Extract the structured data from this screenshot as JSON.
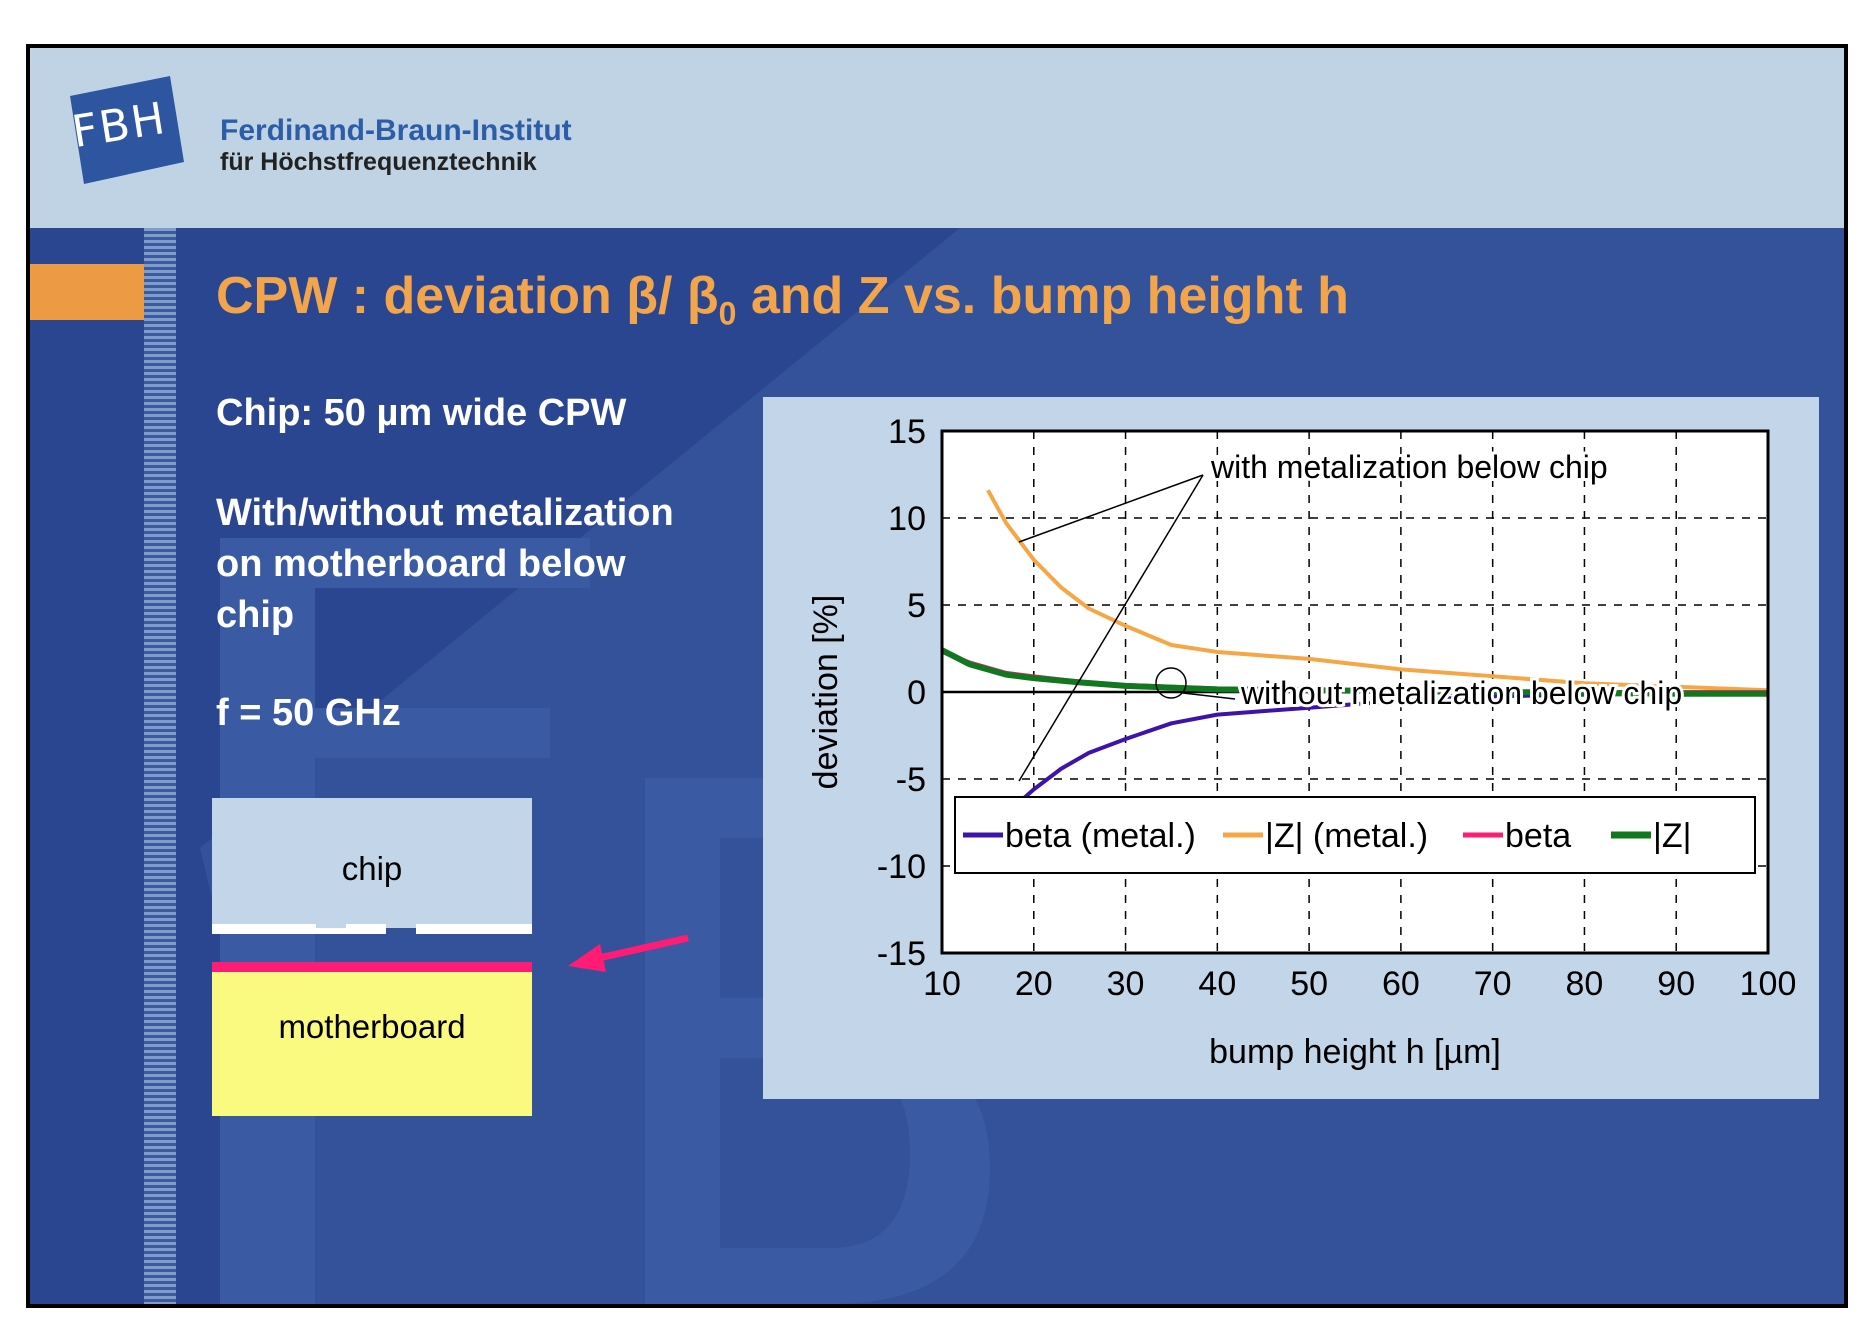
{
  "institute": {
    "logo_letters": "FBH",
    "name": "Ferdinand-Braun-Institut",
    "subtitle": "für Höchstfrequenztechnik"
  },
  "slide": {
    "title_main": "CPW : deviation β/ β",
    "title_sub": "0",
    "title_end": " and Z vs. bump height h",
    "text_chip": "Chip: 50 µm wide CPW",
    "text_metal_1": "With/without metalization",
    "text_metal_2": "on motherboard below",
    "text_metal_3": "chip",
    "text_freq": "f = 50 GHz"
  },
  "diagram": {
    "chip_label": "chip",
    "motherboard_label": "motherboard"
  },
  "colors": {
    "background": "#2b4690",
    "header": "#c0d3e5",
    "accent_orange": "#ec9a43",
    "title": "#f2a54b",
    "arrow": "#ff1c74"
  },
  "chart_data": {
    "type": "line",
    "title": "",
    "xlabel": "bump height h [µm]",
    "ylabel": "deviation [%]",
    "xlim": [
      10,
      100
    ],
    "ylim": [
      -15,
      15
    ],
    "x_ticks": [
      "10",
      "20",
      "30",
      "40",
      "50",
      "60",
      "70",
      "80",
      "90",
      "100"
    ],
    "y_ticks": [
      "15",
      "10",
      "5",
      "0",
      "-5",
      "-10",
      "-15"
    ],
    "grid": "dashed",
    "legend_position": "bottom",
    "annotations": [
      "with metalization below chip",
      "without metalization below chip"
    ],
    "series": [
      {
        "name": "beta (metal.)",
        "color": "#3d13aa",
        "x": [
          15,
          17,
          20,
          23,
          26,
          30,
          35,
          40,
          45,
          50,
          60,
          70,
          80,
          90,
          100
        ],
        "y": [
          -8.2,
          -7,
          -5.6,
          -4.4,
          -3.5,
          -2.7,
          -1.8,
          -1.3,
          -1.1,
          -0.9,
          -0.5,
          -0.25,
          -0.15,
          -0.1,
          -0.1
        ]
      },
      {
        "name": "|Z| (metal.)",
        "color": "#f5a745",
        "x": [
          15,
          17,
          20,
          23,
          26,
          30,
          35,
          40,
          45,
          50,
          60,
          70,
          80,
          90,
          100
        ],
        "y": [
          11.6,
          9.7,
          7.6,
          6,
          4.8,
          3.8,
          2.7,
          2.3,
          2.1,
          1.9,
          1.3,
          0.9,
          0.5,
          0.3,
          0.1
        ]
      },
      {
        "name": "beta",
        "color": "#ff1c74",
        "x": [
          10,
          13,
          17,
          20,
          25,
          30,
          35,
          40,
          50,
          60,
          70,
          80,
          90,
          100
        ],
        "y": [
          2.3,
          1.7,
          1.1,
          0.9,
          0.6,
          0.4,
          0.3,
          0.2,
          0.15,
          0.1,
          0.05,
          0,
          0,
          0
        ]
      },
      {
        "name": "|Z|",
        "color": "#11781f",
        "x": [
          10,
          13,
          17,
          20,
          25,
          30,
          35,
          40,
          50,
          60,
          70,
          80,
          90,
          100
        ],
        "y": [
          2.4,
          1.6,
          1,
          0.8,
          0.55,
          0.35,
          0.25,
          0.15,
          0.1,
          0.05,
          0,
          -0.05,
          -0.1,
          -0.1
        ]
      }
    ]
  }
}
